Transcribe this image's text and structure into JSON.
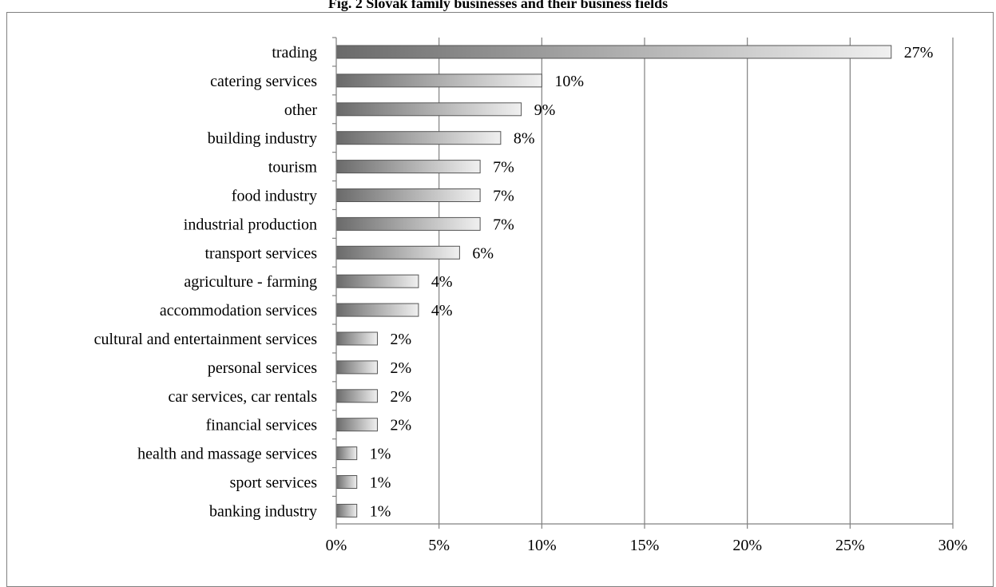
{
  "title": "Fig. 2 Slovak family businesses and their business fields",
  "chart_data": {
    "type": "bar",
    "orientation": "horizontal",
    "categories": [
      "trading",
      "catering services",
      "other",
      "building industry",
      "tourism",
      "food industry",
      "industrial production",
      "transport services",
      "agriculture - farming",
      "accommodation services",
      "cultural and entertainment services",
      "personal services",
      "car services, car rentals",
      "financial services",
      "health and massage services",
      "sport services",
      "banking industry"
    ],
    "values": [
      27,
      10,
      9,
      8,
      7,
      7,
      7,
      6,
      4,
      4,
      2,
      2,
      2,
      2,
      1,
      1,
      1
    ],
    "value_labels": [
      "27%",
      "10%",
      "9%",
      "8%",
      "7%",
      "7%",
      "7%",
      "6%",
      "4%",
      "4%",
      "2%",
      "2%",
      "2%",
      "2%",
      "1%",
      "1%",
      "1%"
    ],
    "xlim": [
      0,
      30
    ],
    "x_ticks": [
      0,
      5,
      10,
      15,
      20,
      25,
      30
    ],
    "x_tick_labels": [
      "0%",
      "5%",
      "10%",
      "15%",
      "20%",
      "25%",
      "30%"
    ],
    "grid": "vertical",
    "legend": "none",
    "colors": {
      "bar_dark": "#6a6a6a",
      "bar_light": "#f0f0f0",
      "grid": "#808080"
    }
  }
}
